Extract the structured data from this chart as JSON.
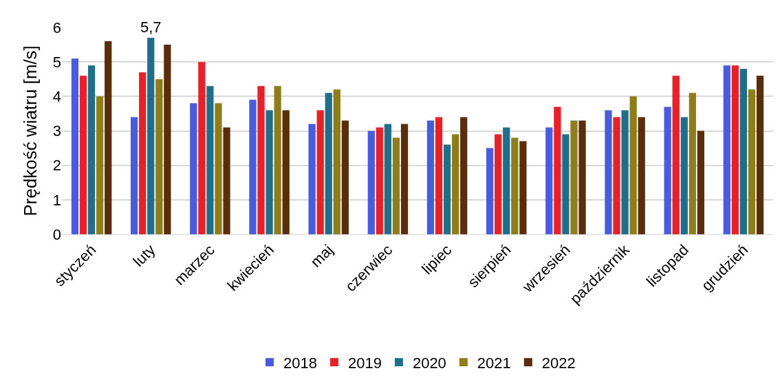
{
  "chart_data": {
    "type": "bar",
    "ylabel": "Prędkość wiatru [m/s]",
    "categories": [
      "styczeń",
      "luty",
      "marzec",
      "kwiecień",
      "maj",
      "czerwiec",
      "lipiec",
      "sierpień",
      "wrzesień",
      "październik",
      "listopad",
      "grudzień"
    ],
    "series": [
      {
        "name": "2018",
        "color": "#4a5bdc",
        "values": [
          5.1,
          3.4,
          3.8,
          3.9,
          3.2,
          3.0,
          3.3,
          2.5,
          3.1,
          3.6,
          3.7,
          4.9
        ]
      },
      {
        "name": "2019",
        "color": "#e8202a",
        "values": [
          4.6,
          4.7,
          5.0,
          4.3,
          3.6,
          3.1,
          3.4,
          2.9,
          3.7,
          3.4,
          4.6,
          4.9
        ]
      },
      {
        "name": "2020",
        "color": "#1f6f8b",
        "values": [
          4.9,
          5.7,
          4.3,
          3.6,
          4.1,
          3.2,
          2.6,
          3.1,
          2.9,
          3.6,
          3.4,
          4.8
        ],
        "value_labels": [
          null,
          "5,7",
          null,
          null,
          null,
          null,
          null,
          null,
          null,
          null,
          null,
          null
        ]
      },
      {
        "name": "2021",
        "color": "#8f7d1b",
        "values": [
          4.0,
          4.5,
          3.8,
          4.3,
          4.2,
          2.8,
          2.9,
          2.8,
          3.3,
          4.0,
          4.1,
          4.2
        ]
      },
      {
        "name": "2022",
        "color": "#5a2d0c",
        "values": [
          5.6,
          5.5,
          3.1,
          3.6,
          3.3,
          3.2,
          3.4,
          2.7,
          3.3,
          3.4,
          3.0,
          4.6
        ]
      }
    ],
    "ylim": [
      0,
      6
    ],
    "yticks": [
      0,
      1,
      2,
      3,
      4,
      5,
      6
    ],
    "grid": "y",
    "legend": "bottom"
  }
}
